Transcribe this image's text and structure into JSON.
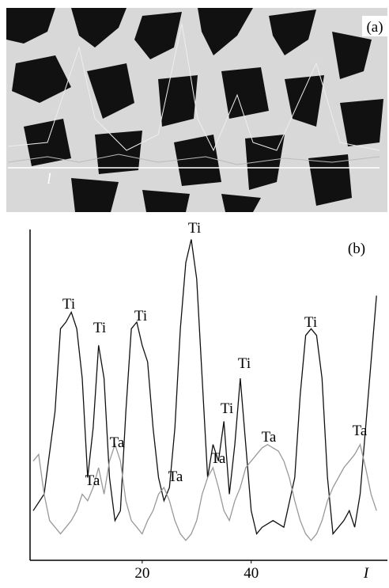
{
  "panel_a": {
    "label": "(a)",
    "marker": "l"
  },
  "chart_data": {
    "type": "line",
    "panel_label": "(b)",
    "x_label": "I",
    "xlim": [
      0,
      65
    ],
    "ylim": [
      0,
      100
    ],
    "xticks": [
      20,
      40
    ],
    "grid": false,
    "series": [
      {
        "name": "Ti",
        "color": "#111111",
        "x": [
          0,
          2,
          4,
          5,
          6,
          7,
          8,
          9,
          10,
          11,
          12,
          13,
          14,
          15,
          16,
          17,
          18,
          19,
          20,
          21,
          22,
          23,
          24,
          25,
          26,
          27,
          28,
          29,
          30,
          31,
          32,
          33,
          34,
          35,
          36,
          37,
          38,
          39,
          40,
          41,
          42,
          44,
          46,
          48,
          49,
          50,
          51,
          52,
          53,
          54,
          55,
          56,
          57,
          58,
          59,
          60,
          61,
          62,
          63
        ],
        "values": [
          15,
          20,
          45,
          70,
          72,
          75,
          70,
          55,
          25,
          40,
          65,
          55,
          25,
          12,
          15,
          45,
          70,
          72,
          65,
          60,
          40,
          25,
          18,
          22,
          40,
          70,
          90,
          97,
          85,
          55,
          25,
          35,
          30,
          42,
          20,
          35,
          55,
          35,
          15,
          8,
          10,
          12,
          10,
          25,
          50,
          68,
          70,
          68,
          55,
          25,
          8,
          10,
          12,
          15,
          10,
          20,
          40,
          60,
          80
        ]
      },
      {
        "name": "Ta",
        "color": "#999999",
        "x": [
          0,
          1,
          2,
          3,
          4,
          5,
          6,
          7,
          8,
          9,
          10,
          11,
          12,
          13,
          14,
          15,
          16,
          17,
          18,
          19,
          20,
          21,
          22,
          23,
          24,
          25,
          26,
          27,
          28,
          29,
          30,
          31,
          32,
          33,
          34,
          35,
          36,
          37,
          38,
          39,
          40,
          41,
          42,
          43,
          44,
          45,
          46,
          47,
          48,
          49,
          50,
          51,
          52,
          53,
          54,
          55,
          56,
          57,
          58,
          59,
          60,
          61,
          62,
          63
        ],
        "values": [
          30,
          32,
          20,
          12,
          10,
          8,
          10,
          12,
          15,
          20,
          18,
          22,
          28,
          20,
          30,
          35,
          30,
          18,
          12,
          10,
          8,
          12,
          15,
          20,
          22,
          18,
          12,
          8,
          6,
          8,
          12,
          20,
          25,
          28,
          22,
          15,
          12,
          18,
          22,
          28,
          30,
          32,
          34,
          35,
          34,
          33,
          30,
          25,
          18,
          12,
          8,
          6,
          8,
          12,
          18,
          22,
          25,
          28,
          30,
          32,
          35,
          28,
          20,
          15
        ]
      }
    ],
    "annotations": [
      "Ti",
      "Ti",
      "Ti",
      "Ti",
      "Ti",
      "Ti",
      "Ti",
      "Ta",
      "Ta",
      "Ta",
      "Ta",
      "Ta",
      "Ta"
    ]
  }
}
